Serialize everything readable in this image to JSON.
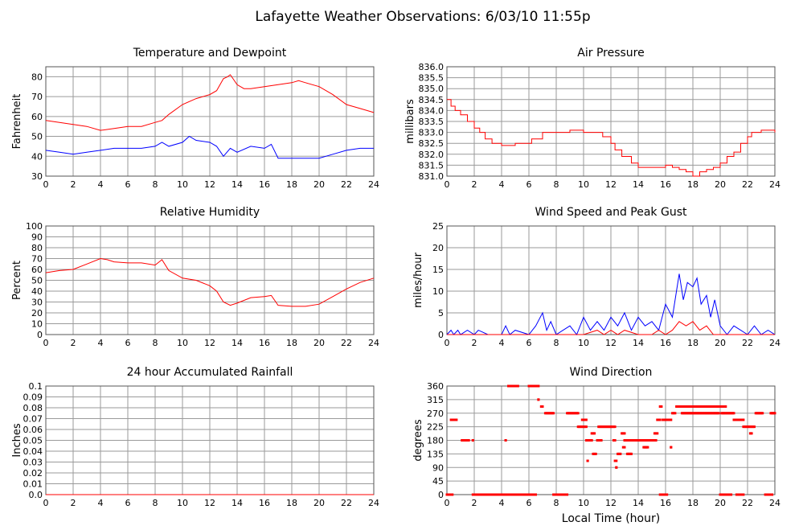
{
  "page": {
    "title": "Lafayette Weather Observations: 6/03/10 11:55p",
    "xlabel": "Local Time (hour)"
  },
  "colors": {
    "grid": "#9a9a9a",
    "frame": "#555555",
    "red": "#ff0000",
    "blue": "#0000ff"
  },
  "chart_data": [
    {
      "id": "temp",
      "type": "line",
      "title": "Temperature and Dewpoint",
      "xlabel": "",
      "ylabel": "Fahrenheit",
      "xlim": [
        0,
        24
      ],
      "ylim": [
        30,
        85
      ],
      "xticks": [
        0,
        2,
        4,
        6,
        8,
        10,
        12,
        14,
        16,
        18,
        20,
        22,
        24
      ],
      "yticks": [
        30,
        40,
        50,
        60,
        70,
        80
      ],
      "ytick_labels": [
        "30",
        "40",
        "50",
        "60",
        "70",
        "80"
      ],
      "series": [
        {
          "color": "#ff0000",
          "x": [
            0,
            1,
            2,
            3,
            4,
            5,
            6,
            7,
            8,
            8.5,
            9,
            10,
            11,
            12,
            12.5,
            13,
            13.3,
            13.5,
            14,
            14.5,
            15,
            16,
            17,
            18,
            18.5,
            19,
            20,
            21,
            22,
            23,
            24
          ],
          "y": [
            58,
            57,
            56,
            55,
            53,
            54,
            55,
            55,
            57,
            58,
            61,
            66,
            69,
            71,
            73,
            79,
            80,
            81,
            76,
            74,
            74,
            75,
            76,
            77,
            78,
            77,
            75,
            71,
            66,
            64,
            62
          ]
        },
        {
          "color": "#0000ff",
          "x": [
            0,
            1,
            2,
            3,
            4,
            5,
            6,
            7,
            8,
            8.5,
            9,
            10,
            10.5,
            11,
            12,
            12.5,
            13,
            13.5,
            14,
            15,
            16,
            16.5,
            17,
            18,
            19,
            20,
            21,
            22,
            23,
            24
          ],
          "y": [
            43,
            42,
            41,
            42,
            43,
            44,
            44,
            44,
            45,
            47,
            45,
            47,
            50,
            48,
            47,
            45,
            40,
            44,
            42,
            45,
            44,
            46,
            39,
            39,
            39,
            39,
            41,
            43,
            44,
            44
          ]
        }
      ]
    },
    {
      "id": "pressure",
      "type": "line",
      "title": "Air Pressure",
      "xlabel": "",
      "ylabel": "millibars",
      "xlim": [
        0,
        24
      ],
      "ylim": [
        831.0,
        836.0
      ],
      "xticks": [
        0,
        2,
        4,
        6,
        8,
        10,
        12,
        14,
        16,
        18,
        20,
        22,
        24
      ],
      "yticks": [
        831.0,
        831.5,
        832.0,
        832.5,
        833.0,
        833.5,
        834.0,
        834.5,
        835.0,
        835.5,
        836.0
      ],
      "ytick_labels": [
        "831.0",
        "831.5",
        "832.0",
        "832.5",
        "833.0",
        "833.5",
        "834.0",
        "834.5",
        "835.0",
        "835.5",
        "836.0"
      ],
      "series": [
        {
          "color": "#ff0000",
          "step": true,
          "x": [
            0,
            0.3,
            0.6,
            1,
            1.5,
            2,
            2.4,
            2.8,
            3.3,
            4,
            5,
            5.8,
            6.2,
            7,
            8,
            9,
            10,
            10.8,
            11.4,
            12,
            12.3,
            12.8,
            13.5,
            14,
            15,
            16,
            16.5,
            17,
            17.5,
            18,
            18.5,
            19,
            19.5,
            20,
            20.5,
            21,
            21.5,
            22,
            22.3,
            23,
            24
          ],
          "y": [
            834.5,
            834.2,
            834.0,
            833.8,
            833.5,
            833.2,
            833.0,
            832.7,
            832.5,
            832.4,
            832.5,
            832.5,
            832.7,
            833.0,
            833.0,
            833.1,
            833.0,
            833.0,
            832.8,
            832.5,
            832.2,
            831.9,
            831.6,
            831.4,
            831.4,
            831.5,
            831.4,
            831.3,
            831.2,
            831.0,
            831.2,
            831.3,
            831.4,
            831.6,
            831.9,
            832.1,
            832.5,
            832.8,
            833.0,
            833.1,
            833.0
          ]
        }
      ]
    },
    {
      "id": "humidity",
      "type": "line",
      "title": "Relative Humidity",
      "xlabel": "",
      "ylabel": "Percent",
      "xlim": [
        0,
        24
      ],
      "ylim": [
        0,
        100
      ],
      "xticks": [
        0,
        2,
        4,
        6,
        8,
        10,
        12,
        14,
        16,
        18,
        20,
        22,
        24
      ],
      "yticks": [
        0,
        10,
        20,
        30,
        40,
        50,
        60,
        70,
        80,
        90,
        100
      ],
      "ytick_labels": [
        "0",
        "10",
        "20",
        "30",
        "40",
        "50",
        "60",
        "70",
        "80",
        "90",
        "100"
      ],
      "series": [
        {
          "color": "#ff0000",
          "x": [
            0,
            1,
            2,
            3,
            4,
            4.5,
            5,
            6,
            7,
            8,
            8.5,
            9,
            10,
            11,
            12,
            12.5,
            13,
            13.5,
            14,
            15,
            16,
            16.5,
            17,
            18,
            19,
            20,
            21,
            22,
            23,
            24
          ],
          "y": [
            57,
            59,
            60,
            65,
            70,
            69,
            67,
            66,
            66,
            64,
            69,
            59,
            52,
            50,
            45,
            40,
            30,
            27,
            29,
            34,
            35,
            36,
            27,
            26,
            26,
            28,
            35,
            42,
            48,
            52
          ]
        }
      ]
    },
    {
      "id": "wind",
      "type": "line",
      "title": "Wind Speed and Peak Gust",
      "xlabel": "",
      "ylabel": "miles/hour",
      "xlim": [
        0,
        24
      ],
      "ylim": [
        0,
        25
      ],
      "xticks": [
        0,
        2,
        4,
        6,
        8,
        10,
        12,
        14,
        16,
        18,
        20,
        22,
        24
      ],
      "yticks": [
        0,
        5,
        10,
        15,
        20,
        25
      ],
      "ytick_labels": [
        "0",
        "5",
        "10",
        "15",
        "20",
        "25"
      ],
      "series": [
        {
          "color": "#0000ff",
          "x": [
            0,
            0.3,
            0.5,
            0.8,
            1,
            1.5,
            2,
            2.3,
            3,
            4,
            4.3,
            4.6,
            5,
            6,
            6.5,
            7,
            7.3,
            7.6,
            8,
            8.5,
            9,
            9.5,
            10,
            10.5,
            11,
            11.5,
            12,
            12.5,
            13,
            13.5,
            14,
            14.5,
            15,
            15.5,
            16,
            16.5,
            16.8,
            17,
            17.3,
            17.6,
            18,
            18.3,
            18.6,
            19,
            19.3,
            19.6,
            20,
            20.5,
            21,
            21.5,
            22,
            22.5,
            23,
            23.5,
            24
          ],
          "y": [
            0,
            1,
            0,
            1,
            0,
            1,
            0,
            1,
            0,
            0,
            2,
            0,
            1,
            0,
            2,
            5,
            1,
            3,
            0,
            1,
            2,
            0,
            4,
            1,
            3,
            1,
            4,
            2,
            5,
            1,
            4,
            2,
            3,
            1,
            7,
            4,
            10,
            14,
            8,
            12,
            11,
            13,
            7,
            9,
            4,
            8,
            2,
            0,
            2,
            1,
            0,
            2,
            0,
            1,
            0
          ]
        },
        {
          "color": "#ff0000",
          "x": [
            0,
            8,
            10,
            11,
            11.5,
            12,
            12.5,
            13,
            14,
            15,
            15.5,
            16,
            16.5,
            17,
            17.5,
            18,
            18.5,
            19,
            19.5,
            20,
            24
          ],
          "y": [
            0,
            0,
            0,
            1,
            0,
            1,
            0,
            1,
            0,
            0,
            1,
            0,
            1,
            3,
            2,
            3,
            1,
            2,
            0,
            0,
            0
          ]
        }
      ]
    },
    {
      "id": "rain",
      "type": "line",
      "title": "24 hour Accumulated Rainfall",
      "xlabel": "",
      "ylabel": "Inches",
      "xlim": [
        0,
        24
      ],
      "ylim": [
        0,
        0.1
      ],
      "xticks": [
        0,
        2,
        4,
        6,
        8,
        10,
        12,
        14,
        16,
        18,
        20,
        22,
        24
      ],
      "yticks": [
        0,
        0.01,
        0.02,
        0.03,
        0.04,
        0.05,
        0.06,
        0.07,
        0.08,
        0.09,
        0.1
      ],
      "ytick_labels": [
        "0.0",
        "0.01",
        "0.02",
        "0.03",
        "0.04",
        "0.05",
        "0.06",
        "0.07",
        "0.08",
        "0.09",
        "0.1"
      ],
      "series": [
        {
          "color": "#ff0000",
          "x": [
            0,
            24
          ],
          "y": [
            0,
            0
          ]
        }
      ]
    },
    {
      "id": "direction",
      "type": "scatter",
      "title": "Wind Direction",
      "xlabel": "Local Time (hour)",
      "ylabel": "degrees",
      "xlim": [
        0,
        24
      ],
      "ylim": [
        0,
        360
      ],
      "xticks": [
        0,
        2,
        4,
        6,
        8,
        10,
        12,
        14,
        16,
        18,
        20,
        22,
        24
      ],
      "yticks": [
        0,
        45,
        90,
        135,
        180,
        225,
        270,
        315,
        360
      ],
      "ytick_labels": [
        "0",
        "45",
        "90",
        "135",
        "180",
        "225",
        "270",
        "315",
        "360"
      ],
      "series": [
        {
          "color": "#ff0000",
          "runs": [
            [
              0,
              0.4,
              0
            ],
            [
              0.3,
              0.7,
              248
            ],
            [
              1.1,
              1.6,
              180
            ],
            [
              1.9,
              1.9,
              180
            ],
            [
              1.9,
              4.2,
              0
            ],
            [
              4.3,
              4.3,
              180
            ],
            [
              4.5,
              5.2,
              360
            ],
            [
              4.3,
              6.5,
              0
            ],
            [
              6.0,
              6.7,
              360
            ],
            [
              6.7,
              6.7,
              315
            ],
            [
              6.9,
              7.0,
              292
            ],
            [
              7.2,
              7.8,
              270
            ],
            [
              7.8,
              8.8,
              0
            ],
            [
              8.8,
              9.6,
              270
            ],
            [
              9.6,
              10.2,
              225
            ],
            [
              9.9,
              10.2,
              248
            ],
            [
              10.2,
              10.6,
              180
            ],
            [
              10.3,
              10.3,
              112
            ],
            [
              10.6,
              10.8,
              203
            ],
            [
              10.7,
              10.9,
              135
            ],
            [
              11.0,
              11.3,
              180
            ],
            [
              11.1,
              12.3,
              225
            ],
            [
              12.2,
              12.3,
              180
            ],
            [
              12.3,
              12.4,
              112
            ],
            [
              12.4,
              12.4,
              90
            ],
            [
              12.5,
              12.7,
              135
            ],
            [
              12.8,
              13.0,
              203
            ],
            [
              12.9,
              13.0,
              157
            ],
            [
              13.0,
              13.7,
              180
            ],
            [
              13.2,
              13.5,
              135
            ],
            [
              13.8,
              14.6,
              180
            ],
            [
              14.4,
              14.7,
              157
            ],
            [
              14.7,
              15.3,
              180
            ],
            [
              15.2,
              15.4,
              203
            ],
            [
              15.4,
              15.6,
              248
            ],
            [
              15.6,
              15.7,
              292
            ],
            [
              15.6,
              16.1,
              0
            ],
            [
              15.8,
              16.4,
              248
            ],
            [
              16.4,
              16.4,
              157
            ],
            [
              16.5,
              16.7,
              270
            ],
            [
              16.8,
              20.4,
              292
            ],
            [
              17.2,
              19.9,
              270
            ],
            [
              20.0,
              20.8,
              0
            ],
            [
              20.1,
              21.0,
              270
            ],
            [
              21.0,
              21.7,
              248
            ],
            [
              21.2,
              21.7,
              0
            ],
            [
              21.7,
              22.5,
              225
            ],
            [
              22.2,
              22.3,
              203
            ],
            [
              22.6,
              23.1,
              270
            ],
            [
              23.3,
              23.8,
              0
            ],
            [
              23.7,
              24.0,
              270
            ]
          ]
        }
      ]
    }
  ]
}
